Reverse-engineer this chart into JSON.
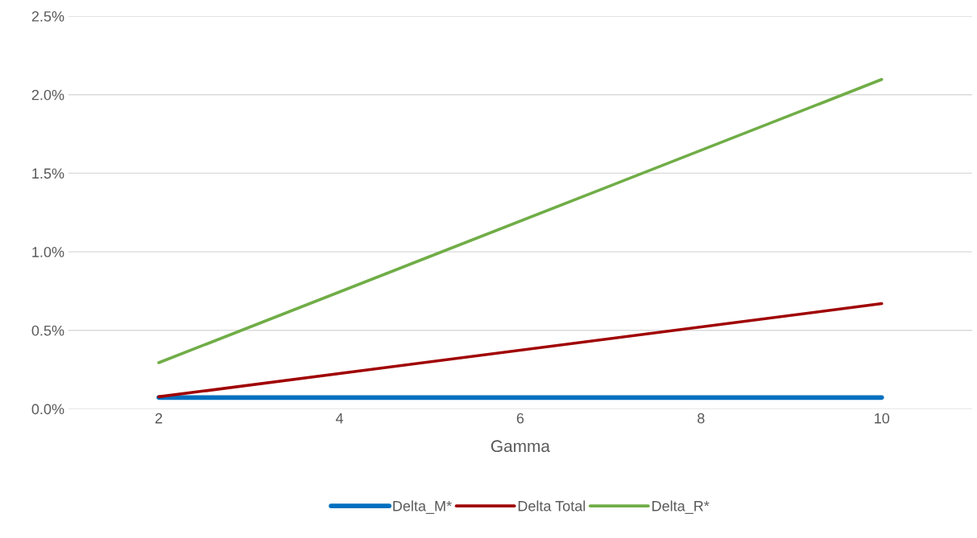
{
  "chart_data": {
    "type": "line",
    "xlabel": "Gamma",
    "x": [
      2,
      10
    ],
    "series": [
      {
        "name": "Delta_M*",
        "color": "#0070c0",
        "values": [
          0.072,
          0.072
        ]
      },
      {
        "name": "Delta Total",
        "color": "#a00000",
        "values": [
          0.077,
          0.67
        ]
      },
      {
        "name": "Delta_R*",
        "color": "#70ad47",
        "values": [
          0.294,
          2.097
        ]
      }
    ],
    "xlim": [
      1,
      11
    ],
    "xticks": [
      2,
      4,
      6,
      8,
      10
    ],
    "ylim": [
      0,
      2.5
    ],
    "yticks": [
      {
        "value": 0,
        "label": "0.0%"
      },
      {
        "value": 0.5,
        "label": "0.5%"
      },
      {
        "value": 1,
        "label": "1.0%"
      },
      {
        "value": 1.5,
        "label": "1.5%"
      },
      {
        "value": 2,
        "label": "2.0%"
      },
      {
        "value": 2.5,
        "label": "2.5%"
      }
    ],
    "grid": "y",
    "legend": "bottom",
    "marker": "none",
    "line_style": "solid"
  }
}
